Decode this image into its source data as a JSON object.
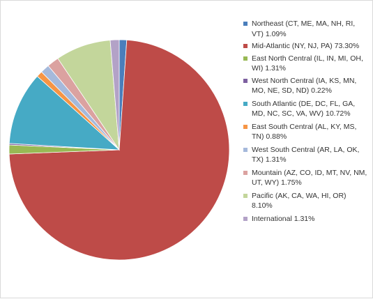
{
  "chart_data": {
    "type": "pie",
    "slices": [
      {
        "label": "Northeast (CT, ME, MA, NH, RI, VT) 1.09%",
        "value": 1.09,
        "color": "#4a7ebb"
      },
      {
        "label": "Mid-Atlantic (NY, NJ, PA) 73.30%",
        "value": 73.3,
        "color": "#be4b48"
      },
      {
        "label": "East North Central (IL, IN, MI, OH, WI) 1.31%",
        "value": 1.31,
        "color": "#98b954"
      },
      {
        "label": "West North Central (IA, KS, MN, MO, NE, SD, ND) 0.22%",
        "value": 0.22,
        "color": "#7d60a0"
      },
      {
        "label": "South Atlantic (DE, DC, FL, GA, MD, NC, SC, VA, WV) 10.72%",
        "value": 10.72,
        "color": "#46aac5"
      },
      {
        "label": "East South Central (AL, KY, MS, TN) 0.88%",
        "value": 0.88,
        "color": "#f69545"
      },
      {
        "label": "West South Central (AR, LA, OK, TX) 1.31%",
        "value": 1.31,
        "color": "#a5b9db"
      },
      {
        "label": "Mountain (AZ, CO, ID, MT, NV, NM, UT, WY) 1.75%",
        "value": 1.75,
        "color": "#dba2a0"
      },
      {
        "label": "Pacific (AK, CA, WA, HI, OR) 8.10%",
        "value": 8.1,
        "color": "#c3d69b"
      },
      {
        "label": "International 1.31%",
        "value": 1.31,
        "color": "#b3a2c7"
      }
    ],
    "start_angle": "12 o'clock",
    "direction": "clockwise",
    "legend_position": "right"
  }
}
